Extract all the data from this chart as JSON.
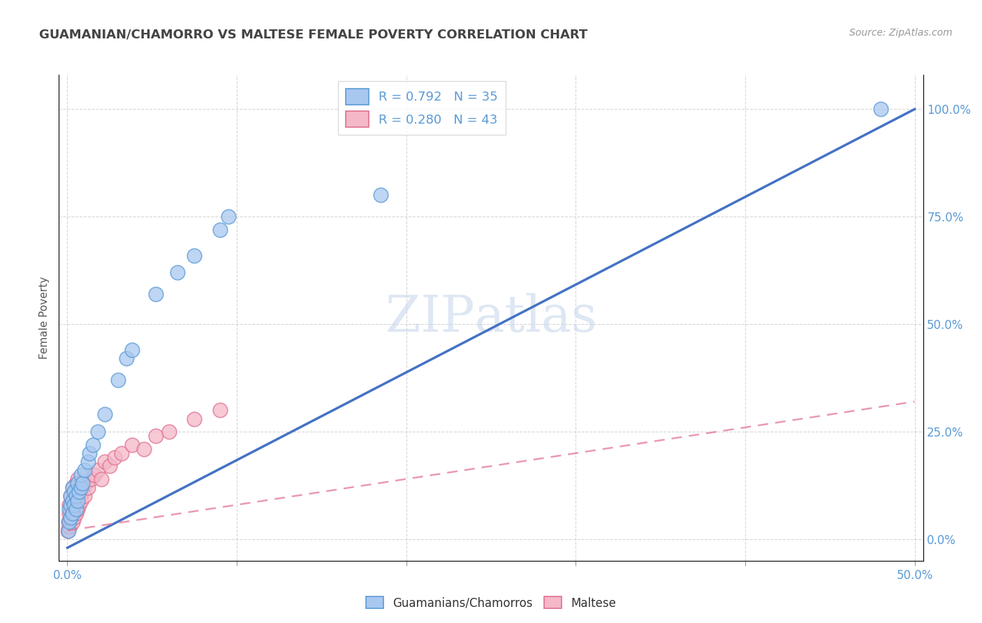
{
  "title": "GUAMANIAN/CHAMORRO VS MALTESE FEMALE POVERTY CORRELATION CHART",
  "source": "Source: ZipAtlas.com",
  "ylabel": "Female Poverty",
  "y_ticks_labels": [
    "0.0%",
    "25.0%",
    "50.0%",
    "75.0%",
    "100.0%"
  ],
  "y_tick_vals": [
    0.0,
    0.25,
    0.5,
    0.75,
    1.0
  ],
  "x_lim": [
    -0.005,
    0.505
  ],
  "y_lim": [
    -0.05,
    1.08
  ],
  "legend_labels": [
    "Guamanians/Chamorros",
    "Maltese"
  ],
  "blue_color": "#A8C8F0",
  "blue_edge_color": "#5B9BD5",
  "pink_color": "#F4B8C8",
  "pink_edge_color": "#E07090",
  "blue_line_color": "#4472C4",
  "pink_line_color": "#E07090",
  "watermark_text": "ZIPatlas",
  "blue_scatter_x": [
    0.0005,
    0.001,
    0.001,
    0.002,
    0.002,
    0.002,
    0.003,
    0.003,
    0.003,
    0.004,
    0.004,
    0.005,
    0.005,
    0.006,
    0.006,
    0.007,
    0.008,
    0.008,
    0.009,
    0.01,
    0.012,
    0.013,
    0.015,
    0.018,
    0.022,
    0.03,
    0.035,
    0.038,
    0.052,
    0.065,
    0.075,
    0.09,
    0.095,
    0.185,
    0.48
  ],
  "blue_scatter_y": [
    0.02,
    0.04,
    0.07,
    0.05,
    0.08,
    0.1,
    0.06,
    0.09,
    0.12,
    0.08,
    0.11,
    0.07,
    0.1,
    0.09,
    0.13,
    0.11,
    0.12,
    0.15,
    0.13,
    0.16,
    0.18,
    0.2,
    0.22,
    0.25,
    0.29,
    0.37,
    0.42,
    0.44,
    0.57,
    0.62,
    0.66,
    0.72,
    0.75,
    0.8,
    1.0
  ],
  "pink_scatter_x": [
    0.0002,
    0.0005,
    0.001,
    0.001,
    0.001,
    0.002,
    0.002,
    0.002,
    0.003,
    0.003,
    0.003,
    0.003,
    0.004,
    0.004,
    0.004,
    0.005,
    0.005,
    0.005,
    0.006,
    0.006,
    0.006,
    0.007,
    0.007,
    0.008,
    0.008,
    0.009,
    0.01,
    0.011,
    0.012,
    0.014,
    0.016,
    0.018,
    0.02,
    0.022,
    0.025,
    0.028,
    0.032,
    0.038,
    0.045,
    0.052,
    0.06,
    0.075,
    0.09
  ],
  "pink_scatter_y": [
    0.02,
    0.04,
    0.03,
    0.06,
    0.08,
    0.05,
    0.07,
    0.1,
    0.04,
    0.07,
    0.09,
    0.12,
    0.05,
    0.08,
    0.11,
    0.06,
    0.09,
    0.13,
    0.07,
    0.1,
    0.14,
    0.08,
    0.12,
    0.09,
    0.13,
    0.11,
    0.1,
    0.13,
    0.12,
    0.14,
    0.15,
    0.16,
    0.14,
    0.18,
    0.17,
    0.19,
    0.2,
    0.22,
    0.21,
    0.24,
    0.25,
    0.28,
    0.3
  ],
  "blue_line_x": [
    0.0,
    0.5
  ],
  "blue_line_y": [
    -0.02,
    1.0
  ],
  "pink_line_x": [
    0.0,
    0.5
  ],
  "pink_line_y": [
    0.02,
    0.32
  ]
}
